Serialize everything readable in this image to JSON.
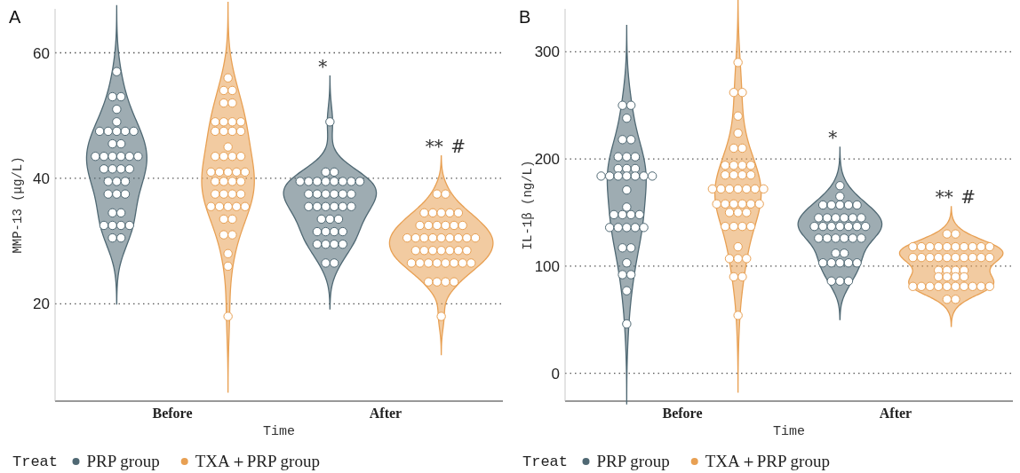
{
  "chart_data": [
    {
      "type": "scatter",
      "title": "A",
      "xlabel": "Time",
      "ylabel": "MMP-13 (μg/L)",
      "legend_title": "Treat",
      "legend": "bottom",
      "grid": "y",
      "marker": "circle",
      "categories": [
        "Before",
        "After"
      ],
      "ylim": [
        4.5,
        67
      ],
      "yticks": [
        20,
        40,
        60
      ],
      "annotations": [
        "*",
        "**",
        "#"
      ],
      "series": [
        {
          "name": "PRP group",
          "color": "#4f6873",
          "x": [
            "Before",
            "Before",
            "Before",
            "Before",
            "Before",
            "Before",
            "Before",
            "Before",
            "Before",
            "Before",
            "Before",
            "Before",
            "Before",
            "Before",
            "Before",
            "Before",
            "Before",
            "Before",
            "Before",
            "Before",
            "Before",
            "Before",
            "Before",
            "Before",
            "Before",
            "Before",
            "Before",
            "Before",
            "Before",
            "Before",
            "Before",
            "Before",
            "Before",
            "Before",
            "Before",
            "Before",
            "After",
            "After",
            "After",
            "After",
            "After",
            "After",
            "After",
            "After",
            "After",
            "After",
            "After",
            "After",
            "After",
            "After",
            "After",
            "After",
            "After",
            "After",
            "After",
            "After",
            "After",
            "After",
            "After",
            "After",
            "After",
            "After",
            "After",
            "After",
            "After",
            "After",
            "After",
            "After",
            "After",
            "After",
            "After",
            "After"
          ],
          "values": [
            57,
            53,
            53,
            51,
            49,
            47.5,
            47.5,
            47.5,
            47.5,
            47.5,
            45.5,
            45.5,
            43.5,
            43.5,
            43.5,
            43.5,
            43.5,
            43.5,
            41.5,
            41.5,
            41.5,
            41.5,
            39.5,
            39.5,
            39.5,
            37.5,
            37.5,
            37.5,
            34.5,
            34.5,
            32.5,
            32.5,
            32.5,
            32.5,
            30.5,
            30.5,
            49,
            41,
            41,
            39.5,
            39.5,
            39.5,
            39.5,
            39.5,
            39.5,
            39.5,
            39.5,
            37.5,
            37.5,
            37.5,
            37.5,
            37.5,
            37.5,
            35.5,
            35.5,
            35.5,
            35.5,
            35.5,
            35.5,
            33.5,
            33.5,
            33.5,
            31.5,
            31.5,
            31.5,
            31.5,
            29.5,
            29.5,
            29.5,
            29.5,
            26.5,
            26.5
          ]
        },
        {
          "name": "TXA＋PRP group",
          "color": "#e8a053",
          "x": [
            "Before",
            "Before",
            "Before",
            "Before",
            "Before",
            "Before",
            "Before",
            "Before",
            "Before",
            "Before",
            "Before",
            "Before",
            "Before",
            "Before",
            "Before",
            "Before",
            "Before",
            "Before",
            "Before",
            "Before",
            "Before",
            "Before",
            "Before",
            "Before",
            "Before",
            "Before",
            "Before",
            "Before",
            "Before",
            "Before",
            "Before",
            "Before",
            "Before",
            "Before",
            "Before",
            "Before",
            "Before",
            "Before",
            "Before",
            "Before",
            "Before",
            "Before",
            "Before",
            "After",
            "After",
            "After",
            "After",
            "After",
            "After",
            "After",
            "After",
            "After",
            "After",
            "After",
            "After",
            "After",
            "After",
            "After",
            "After",
            "After",
            "After",
            "After",
            "After",
            "After",
            "After",
            "After",
            "After",
            "After",
            "After",
            "After",
            "After",
            "After",
            "After",
            "After",
            "After",
            "After",
            "After",
            "After",
            "After",
            "After",
            "After",
            "After",
            "After",
            "After",
            "After"
          ],
          "values": [
            56,
            54,
            54,
            52,
            52,
            49,
            49,
            49,
            49,
            47.5,
            47.5,
            47.5,
            47.5,
            45,
            43.5,
            43.5,
            43.5,
            43.5,
            41,
            41,
            41,
            41,
            41,
            39.5,
            39.5,
            39.5,
            39.5,
            37.5,
            37.5,
            37.5,
            37.5,
            35.5,
            35.5,
            35.5,
            35.5,
            35.5,
            33.5,
            33.5,
            31,
            31,
            28,
            26,
            18,
            37.5,
            37.5,
            34.5,
            34.5,
            34.5,
            34.5,
            34.5,
            32.5,
            32.5,
            32.5,
            32.5,
            32.5,
            32.5,
            30.5,
            30.5,
            30.5,
            30.5,
            30.5,
            30.5,
            30.5,
            30.5,
            30.5,
            28.5,
            28.5,
            28.5,
            28.5,
            28.5,
            28.5,
            28.5,
            26.5,
            26.5,
            26.5,
            26.5,
            26.5,
            26.5,
            26.5,
            26.5,
            23.5,
            23.5,
            23.5,
            23.5,
            18
          ]
        }
      ]
    },
    {
      "type": "scatter",
      "title": "B",
      "xlabel": "Time",
      "ylabel": "IL-1β (ng/L)",
      "legend_title": "Treat",
      "legend": "bottom",
      "grid": "y",
      "marker": "circle",
      "categories": [
        "Before",
        "After"
      ],
      "ylim": [
        -26,
        340
      ],
      "yticks": [
        0,
        100,
        200,
        300
      ],
      "annotations": [
        "*",
        "**",
        "#"
      ],
      "series": [
        {
          "name": "PRP group",
          "color": "#4f6873",
          "x": [
            "Before",
            "Before",
            "Before",
            "Before",
            "Before",
            "Before",
            "Before",
            "Before",
            "Before",
            "Before",
            "Before",
            "Before",
            "Before",
            "Before",
            "Before",
            "Before",
            "Before",
            "Before",
            "Before",
            "Before",
            "Before",
            "Before",
            "Before",
            "Before",
            "Before",
            "Before",
            "Before",
            "Before",
            "Before",
            "Before",
            "Before",
            "Before",
            "Before",
            "Before",
            "Before",
            "Before",
            "After",
            "After",
            "After",
            "After",
            "After",
            "After",
            "After",
            "After",
            "After",
            "After",
            "After",
            "After",
            "After",
            "After",
            "After",
            "After",
            "After",
            "After",
            "After",
            "After",
            "After",
            "After",
            "After",
            "After",
            "After",
            "After",
            "After",
            "After",
            "After",
            "After",
            "After",
            "After",
            "After",
            "After",
            "After",
            "After"
          ],
          "values": [
            250,
            250,
            238,
            218,
            218,
            202,
            202,
            202,
            191,
            191,
            191,
            184,
            184,
            184,
            184,
            184,
            184,
            184,
            171,
            155,
            148,
            148,
            148,
            148,
            136,
            136,
            136,
            136,
            136,
            117,
            117,
            103,
            92,
            92,
            77,
            46,
            175,
            165,
            157,
            157,
            157,
            157,
            157,
            145,
            145,
            145,
            145,
            145,
            145,
            137,
            137,
            137,
            137,
            137,
            137,
            137,
            126,
            126,
            126,
            126,
            126,
            126,
            112,
            112,
            103,
            103,
            103,
            103,
            103,
            86,
            86,
            86
          ]
        },
        {
          "name": "TXA＋PRP group",
          "color": "#e8a053",
          "x": [
            "Before",
            "Before",
            "Before",
            "Before",
            "Before",
            "Before",
            "Before",
            "Before",
            "Before",
            "Before",
            "Before",
            "Before",
            "Before",
            "Before",
            "Before",
            "Before",
            "Before",
            "Before",
            "Before",
            "Before",
            "Before",
            "Before",
            "Before",
            "Before",
            "Before",
            "Before",
            "Before",
            "Before",
            "Before",
            "Before",
            "Before",
            "Before",
            "Before",
            "Before",
            "Before",
            "Before",
            "Before",
            "Before",
            "Before",
            "Before",
            "Before",
            "Before",
            "After",
            "After",
            "After",
            "After",
            "After",
            "After",
            "After",
            "After",
            "After",
            "After",
            "After",
            "After",
            "After",
            "After",
            "After",
            "After",
            "After",
            "After",
            "After",
            "After",
            "After",
            "After",
            "After",
            "After",
            "After",
            "After",
            "After",
            "After",
            "After",
            "After",
            "After",
            "After",
            "After",
            "After",
            "After",
            "After",
            "After",
            "After",
            "After",
            "After",
            "After",
            "After"
          ],
          "values": [
            290,
            262,
            262,
            240,
            224,
            210,
            210,
            194,
            194,
            194,
            194,
            185,
            185,
            185,
            185,
            172,
            172,
            172,
            172,
            172,
            172,
            172,
            158,
            158,
            158,
            158,
            158,
            158,
            150,
            150,
            150,
            137,
            137,
            137,
            137,
            118,
            107,
            107,
            107,
            90,
            90,
            54,
            130,
            130,
            118,
            118,
            118,
            118,
            118,
            118,
            118,
            118,
            118,
            118,
            108,
            108,
            108,
            108,
            108,
            108,
            108,
            108,
            108,
            108,
            96,
            96,
            96,
            96,
            90,
            90,
            90,
            90,
            81,
            81,
            81,
            81,
            81,
            81,
            81,
            81,
            81,
            81,
            69,
            69
          ]
        }
      ]
    }
  ]
}
